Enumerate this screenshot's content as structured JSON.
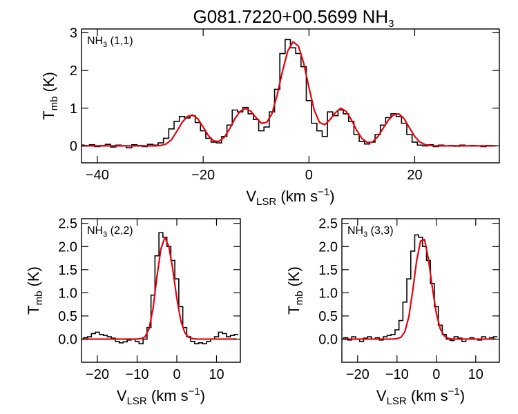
{
  "figure": {
    "title_main": "G081.7220+00.5699 NH",
    "title_sub": "3"
  },
  "chart_data": [
    {
      "type": "line",
      "panel_label": "NH",
      "panel_label_sub": "3",
      "panel_label_suffix": " (1,1)",
      "xlabel": "V",
      "xlabel_sub": "LSR",
      "xlabel_suffix": " (km s",
      "xlabel_sup": "−1",
      "xlabel_close": ")",
      "ylabel": "T",
      "ylabel_sub": "mb",
      "ylabel_suffix": " (K)",
      "xlim": [
        -43,
        36
      ],
      "ylim": [
        -0.45,
        3.1
      ],
      "xticks": [
        -40,
        -20,
        0,
        20
      ],
      "yticks": [
        0,
        1,
        2,
        3
      ],
      "series": [
        {
          "style": "histogram",
          "color": "#000000",
          "x": [
            -43,
            -42,
            -41,
            -40,
            -39,
            -38,
            -37,
            -36,
            -35,
            -34,
            -33,
            -32,
            -31,
            -30,
            -29,
            -28,
            -27,
            -26,
            -25,
            -24,
            -23,
            -22,
            -21,
            -20,
            -19,
            -18,
            -17,
            -16,
            -15,
            -14,
            -13,
            -12,
            -11,
            -10,
            -9,
            -8,
            -7,
            -6,
            -5,
            -4,
            -3,
            -2,
            -1,
            0,
            1,
            2,
            3,
            4,
            5,
            6,
            7,
            8,
            9,
            10,
            11,
            12,
            13,
            14,
            15,
            16,
            17,
            18,
            19,
            20,
            21,
            22,
            23,
            24,
            25,
            26,
            27,
            28,
            29,
            30,
            31,
            32,
            33,
            34,
            35
          ],
          "y": [
            0.02,
            0.0,
            0.03,
            -0.02,
            0.01,
            0.04,
            -0.03,
            0.02,
            0.0,
            -0.05,
            0.03,
            0.01,
            -0.02,
            0.04,
            0.02,
            0.08,
            0.2,
            0.45,
            0.65,
            0.78,
            0.74,
            0.8,
            0.62,
            0.4,
            0.2,
            0.1,
            0.08,
            0.25,
            0.55,
            0.95,
            0.9,
            1.02,
            0.85,
            0.7,
            0.4,
            0.5,
            0.9,
            1.5,
            2.45,
            2.82,
            2.6,
            2.45,
            2.1,
            1.2,
            0.6,
            0.4,
            0.25,
            0.9,
            0.8,
            0.95,
            0.85,
            0.65,
            0.3,
            0.12,
            0.05,
            0.1,
            0.3,
            0.55,
            0.75,
            0.85,
            0.78,
            0.6,
            0.3,
            0.1,
            0.02,
            0.0,
            0.03,
            -0.02,
            0.02,
            0.0,
            0.01,
            -0.01,
            0.02,
            0.0,
            0.01,
            0.0,
            -0.02,
            0.01,
            0.0
          ]
        },
        {
          "style": "fit",
          "color": "#e8000b",
          "x": [
            -43,
            -42,
            -41,
            -40,
            -39,
            -38,
            -37,
            -36,
            -35,
            -34,
            -33,
            -32,
            -31,
            -30,
            -29,
            -28,
            -27,
            -26,
            -25,
            -24,
            -23,
            -22,
            -21,
            -20,
            -19,
            -18,
            -17,
            -16,
            -15,
            -14,
            -13,
            -12,
            -11,
            -10,
            -9,
            -8,
            -7,
            -6,
            -5,
            -4,
            -3,
            -2,
            -1,
            0,
            1,
            2,
            3,
            4,
            5,
            6,
            7,
            8,
            9,
            10,
            11,
            12,
            13,
            14,
            15,
            16,
            17,
            18,
            19,
            20,
            21,
            22,
            23,
            24,
            25,
            26,
            27,
            28,
            29,
            30,
            31,
            32,
            33,
            34,
            35
          ],
          "y": [
            0,
            0,
            0,
            0,
            0,
            0,
            0,
            0,
            0,
            0,
            0,
            0,
            0,
            0,
            0,
            0.01,
            0.05,
            0.16,
            0.38,
            0.62,
            0.78,
            0.82,
            0.72,
            0.5,
            0.27,
            0.13,
            0.12,
            0.23,
            0.45,
            0.72,
            0.92,
            0.99,
            0.92,
            0.75,
            0.6,
            0.62,
            0.85,
            1.35,
            1.98,
            2.52,
            2.76,
            2.65,
            2.2,
            1.55,
            0.95,
            0.62,
            0.56,
            0.7,
            0.88,
            1.0,
            0.92,
            0.7,
            0.42,
            0.2,
            0.09,
            0.1,
            0.24,
            0.46,
            0.68,
            0.82,
            0.85,
            0.72,
            0.48,
            0.25,
            0.1,
            0.03,
            0.01,
            0,
            0,
            0,
            0,
            0,
            0,
            0,
            0,
            0,
            0,
            0,
            0
          ]
        }
      ]
    },
    {
      "type": "line",
      "panel_label": "NH",
      "panel_label_sub": "3",
      "panel_label_suffix": " (2,2)",
      "xlabel": "V",
      "xlabel_sub": "LSR",
      "xlabel_suffix": " (km s",
      "xlabel_sup": "−1",
      "xlabel_close": ")",
      "ylabel": "T",
      "ylabel_sub": "mb",
      "ylabel_suffix": " (K)",
      "xlim": [
        -24,
        16
      ],
      "ylim": [
        -0.5,
        2.6
      ],
      "xticks": [
        -20,
        -10,
        0,
        10
      ],
      "yticks": [
        0.0,
        0.5,
        1.0,
        1.5,
        2.0,
        2.5
      ],
      "series": [
        {
          "style": "histogram",
          "color": "#000000",
          "x": [
            -24,
            -23,
            -22,
            -21,
            -20,
            -19,
            -18,
            -17,
            -16,
            -15,
            -14,
            -13,
            -12,
            -11,
            -10,
            -9,
            -8,
            -7,
            -6,
            -5,
            -4,
            -3,
            -2,
            -1,
            0,
            1,
            2,
            3,
            4,
            5,
            6,
            7,
            8,
            9,
            10,
            11,
            12,
            13,
            14,
            15
          ],
          "y": [
            0.0,
            0.03,
            0.05,
            0.12,
            0.15,
            0.1,
            0.08,
            0.05,
            0.02,
            -0.05,
            -0.08,
            -0.06,
            -0.02,
            0.0,
            -0.05,
            -0.1,
            0.0,
            0.25,
            0.95,
            1.8,
            2.3,
            2.2,
            2.0,
            1.7,
            1.3,
            0.7,
            0.25,
            0.05,
            -0.05,
            -0.1,
            -0.08,
            -0.1,
            -0.05,
            0.0,
            0.05,
            0.15,
            0.12,
            0.05,
            0.08,
            0.1
          ]
        },
        {
          "style": "fit",
          "color": "#e8000b",
          "x": [
            -24,
            -23,
            -22,
            -21,
            -20,
            -19,
            -18,
            -17,
            -16,
            -15,
            -14,
            -13,
            -12,
            -11,
            -10,
            -9,
            -8,
            -7,
            -6,
            -5,
            -4,
            -3,
            -2,
            -1,
            0,
            1,
            2,
            3,
            4,
            5,
            6,
            7,
            8,
            9,
            10,
            11,
            12,
            13,
            14,
            15
          ],
          "y": [
            0,
            0,
            0,
            0,
            0,
            0,
            0,
            0,
            0,
            0,
            0,
            0,
            0,
            0,
            0,
            0.01,
            0.05,
            0.22,
            0.65,
            1.35,
            1.95,
            2.2,
            2.0,
            1.5,
            0.88,
            0.4,
            0.14,
            0.04,
            0.01,
            0,
            0,
            0,
            0,
            0,
            0,
            0,
            0,
            0,
            0,
            0
          ]
        }
      ]
    },
    {
      "type": "line",
      "panel_label": "NH",
      "panel_label_sub": "3",
      "panel_label_suffix": " (3,3)",
      "xlabel": "V",
      "xlabel_sub": "LSR",
      "xlabel_suffix": " (km s",
      "xlabel_sup": "−1",
      "xlabel_close": ")",
      "ylabel": "T",
      "ylabel_sub": "mb",
      "ylabel_suffix": " (K)",
      "xlim": [
        -24,
        16
      ],
      "ylim": [
        -0.5,
        2.6
      ],
      "xticks": [
        -20,
        -10,
        0,
        10
      ],
      "yticks": [
        0.0,
        0.5,
        1.0,
        1.5,
        2.0,
        2.5
      ],
      "series": [
        {
          "style": "histogram",
          "color": "#000000",
          "x": [
            -24,
            -23,
            -22,
            -21,
            -20,
            -19,
            -18,
            -17,
            -16,
            -15,
            -14,
            -13,
            -12,
            -11,
            -10,
            -9,
            -8,
            -7,
            -6,
            -5,
            -4,
            -3,
            -2,
            -1,
            0,
            1,
            2,
            3,
            4,
            5,
            6,
            7,
            8,
            9,
            10,
            11,
            12,
            13,
            14,
            15
          ],
          "y": [
            0.0,
            0.03,
            -0.02,
            0.05,
            0.0,
            -0.05,
            0.02,
            0.05,
            0.0,
            0.03,
            -0.02,
            0.05,
            0.08,
            0.1,
            0.2,
            0.4,
            0.8,
            1.3,
            1.9,
            2.25,
            2.2,
            2.0,
            1.7,
            1.2,
            0.7,
            0.3,
            0.1,
            0.0,
            -0.03,
            0.05,
            0.02,
            -0.05,
            0.0,
            0.03,
            0.0,
            -0.02,
            0.05,
            0.0,
            0.03,
            0.05
          ]
        },
        {
          "style": "fit",
          "color": "#e8000b",
          "x": [
            -24,
            -23,
            -22,
            -21,
            -20,
            -19,
            -18,
            -17,
            -16,
            -15,
            -14,
            -13,
            -12,
            -11,
            -10,
            -9,
            -8,
            -7,
            -6,
            -5,
            -4,
            -3,
            -2,
            -1,
            0,
            1,
            2,
            3,
            4,
            5,
            6,
            7,
            8,
            9,
            10,
            11,
            12,
            13,
            14,
            15
          ],
          "y": [
            0,
            0,
            0,
            0,
            0,
            0,
            0,
            0,
            0,
            0,
            0,
            0,
            0,
            0,
            0.01,
            0.04,
            0.16,
            0.48,
            1.05,
            1.7,
            2.12,
            2.15,
            1.72,
            1.1,
            0.55,
            0.22,
            0.07,
            0.02,
            0,
            0,
            0,
            0,
            0,
            0,
            0,
            0,
            0,
            0,
            0,
            0
          ]
        }
      ]
    }
  ]
}
